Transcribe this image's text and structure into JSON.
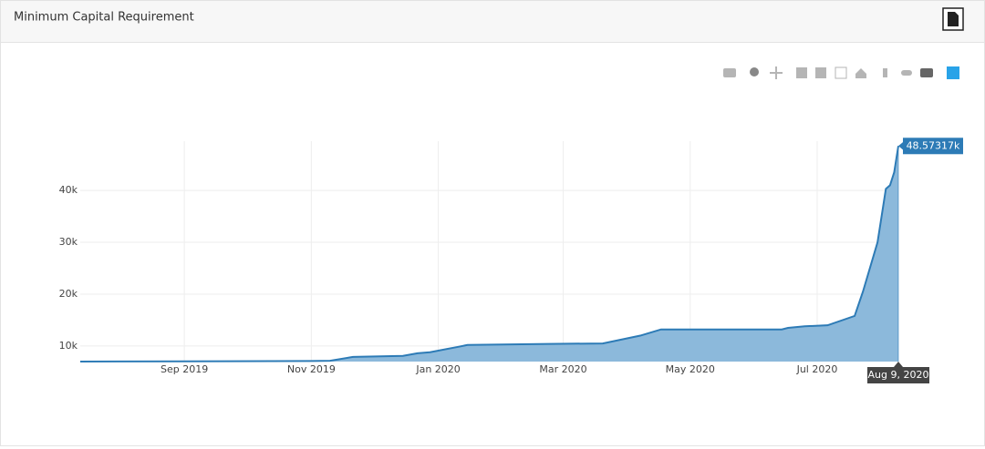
{
  "header": {
    "title": "Minimum Capital Requirement"
  },
  "chart_data": {
    "type": "area",
    "x": [
      "2019-07-13",
      "2019-09-01",
      "2019-11-01",
      "2019-11-10",
      "2019-11-21",
      "2019-12-15",
      "2019-12-22",
      "2019-12-28",
      "2020-01-10",
      "2020-01-15",
      "2020-02-23",
      "2020-03-20",
      "2020-04-07",
      "2020-04-17",
      "2020-06-14",
      "2020-06-17",
      "2020-06-25",
      "2020-07-06",
      "2020-07-19",
      "2020-07-23",
      "2020-07-30",
      "2020-08-03",
      "2020-08-05",
      "2020-08-07",
      "2020-08-09"
    ],
    "values": [
      7000,
      7050,
      7100,
      7150,
      7900,
      8100,
      8600,
      8800,
      9800,
      10200,
      10400,
      10500,
      12000,
      13200,
      13200,
      13500,
      13800,
      14000,
      15800,
      20500,
      30000,
      40300,
      41000,
      43500,
      48573.17
    ],
    "color": "#2d7bb6",
    "fill_color": "#8cb9db",
    "xlim": [
      "2019-07-13",
      "2020-08-09"
    ],
    "xticks": [
      {
        "value": "2019-09-01",
        "label": "Sep 2019"
      },
      {
        "value": "2019-11-01",
        "label": "Nov 2019"
      },
      {
        "value": "2020-01-01",
        "label": "Jan 2020"
      },
      {
        "value": "2020-03-01",
        "label": "Mar 2020"
      },
      {
        "value": "2020-05-01",
        "label": "May 2020"
      },
      {
        "value": "2020-07-01",
        "label": "Jul 2020"
      }
    ],
    "ylim": [
      7000,
      49500
    ],
    "yticks": [
      {
        "value": 10000,
        "label": "10k"
      },
      {
        "value": 20000,
        "label": "20k"
      },
      {
        "value": 30000,
        "label": "30k"
      },
      {
        "value": 40000,
        "label": "40k"
      }
    ],
    "grid": true,
    "hover": {
      "x": "2020-08-09",
      "x_label": "Aug 9, 2020",
      "y": 48573.17,
      "y_label": "48.57317k"
    }
  }
}
